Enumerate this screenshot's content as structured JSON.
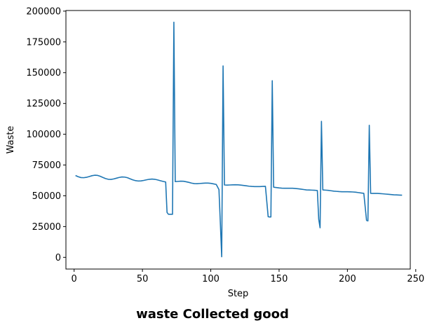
{
  "caption": "waste Collected good",
  "chart_data": {
    "type": "line",
    "title": "",
    "xlabel": "Step",
    "ylabel": "Waste",
    "xlim": [
      -6,
      246
    ],
    "ylim": [
      -9500,
      200500
    ],
    "xticks": [
      0,
      50,
      100,
      150,
      200,
      250
    ],
    "yticks": [
      0,
      25000,
      50000,
      75000,
      100000,
      125000,
      150000,
      175000,
      200000
    ],
    "xtick_labels": [
      "0",
      "50",
      "100",
      "150",
      "200",
      "250"
    ],
    "ytick_labels": [
      "0",
      "25000",
      "50000",
      "75000",
      "100000",
      "125000",
      "150000",
      "175000",
      "200000"
    ],
    "grid": false,
    "series": [
      {
        "color": "#1f77b4",
        "x": [
          1,
          3,
          5,
          7,
          9,
          11,
          13,
          15,
          17,
          19,
          21,
          23,
          25,
          27,
          29,
          31,
          33,
          35,
          37,
          39,
          41,
          43,
          45,
          47,
          49,
          51,
          53,
          55,
          57,
          59,
          61,
          63,
          65,
          67,
          68,
          69,
          70,
          71,
          72,
          73,
          74,
          76,
          78,
          80,
          82,
          84,
          86,
          88,
          90,
          92,
          94,
          96,
          98,
          100,
          102,
          104,
          106,
          107,
          108,
          109,
          110,
          112,
          114,
          116,
          118,
          120,
          122,
          124,
          126,
          128,
          130,
          132,
          134,
          136,
          138,
          140,
          142,
          143,
          144,
          145,
          146,
          148,
          150,
          152,
          154,
          156,
          158,
          160,
          162,
          164,
          166,
          168,
          170,
          172,
          174,
          176,
          178,
          179,
          180,
          181,
          182,
          184,
          186,
          188,
          190,
          192,
          194,
          196,
          198,
          200,
          202,
          204,
          206,
          208,
          210,
          212,
          214,
          215,
          216,
          217,
          218,
          220,
          222,
          224,
          226,
          228,
          230,
          232,
          234,
          236,
          238,
          240
        ],
        "y": [
          66500,
          65500,
          64800,
          64700,
          65000,
          65600,
          66300,
          66700,
          66600,
          65900,
          64900,
          64000,
          63400,
          63300,
          63700,
          64300,
          64900,
          65300,
          65200,
          64700,
          63800,
          62900,
          62300,
          62000,
          62100,
          62500,
          63000,
          63400,
          63600,
          63400,
          62900,
          62300,
          61700,
          61200,
          36500,
          35000,
          35000,
          35000,
          35000,
          191000,
          61500,
          61700,
          61900,
          61800,
          61400,
          60900,
          60300,
          59900,
          59800,
          60000,
          60200,
          60300,
          60300,
          60100,
          59700,
          59200,
          55000,
          28000,
          500,
          155500,
          58800,
          58700,
          58800,
          58900,
          59000,
          58900,
          58700,
          58400,
          58100,
          57800,
          57600,
          57500,
          57500,
          57500,
          57600,
          57700,
          33000,
          32800,
          32800,
          143500,
          57000,
          56700,
          56400,
          56200,
          56100,
          56100,
          56100,
          56100,
          55900,
          55700,
          55400,
          55100,
          54800,
          54700,
          54600,
          54500,
          54300,
          31000,
          24000,
          110500,
          54800,
          54600,
          54400,
          54100,
          53800,
          53600,
          53400,
          53300,
          53300,
          53300,
          53200,
          53100,
          52900,
          52600,
          52300,
          52000,
          30000,
          29600,
          107300,
          52000,
          51900,
          51900,
          51900,
          51800,
          51600,
          51400,
          51200,
          51000,
          50800,
          50700,
          50600,
          50500
        ]
      }
    ]
  }
}
